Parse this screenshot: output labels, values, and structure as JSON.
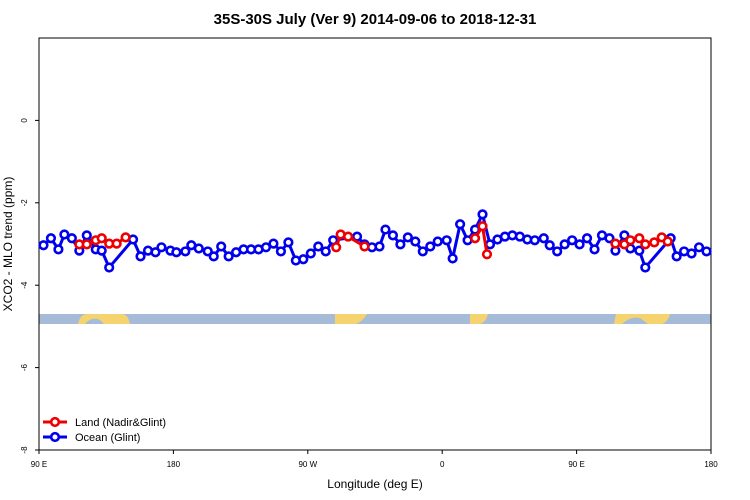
{
  "chart_data": {
    "type": "line",
    "title": "35S-30S July (Ver 9)   2014-09-06 to 2018-12-31",
    "x_label": "Longitude (deg E)",
    "y_label": "XCO2 - MLO trend (ppm)",
    "xlim": [
      90,
      540
    ],
    "xticks": [
      {
        "value": 90,
        "label": "90 E"
      },
      {
        "value": 180,
        "label": "180"
      },
      {
        "value": 270,
        "label": "90 W"
      },
      {
        "value": 360,
        "label": "0"
      },
      {
        "value": 450,
        "label": "90 E"
      },
      {
        "value": 540,
        "label": "180"
      }
    ],
    "ylim": [
      -8,
      2
    ],
    "yticks": [
      -8,
      -6,
      -4,
      -2,
      0
    ],
    "legend": "bottom left",
    "series": [
      {
        "name": "Ocean (Glint)",
        "color": "#0000ee",
        "x": [
          93,
          98,
          103,
          107,
          112,
          117,
          122,
          128,
          132,
          137,
          153,
          158,
          163,
          168,
          172,
          178,
          182,
          188,
          192,
          197,
          203,
          207,
          212,
          217,
          222,
          227,
          232,
          237,
          242,
          247,
          252,
          257,
          262,
          267,
          272,
          277,
          282,
          287,
          303,
          308,
          313,
          318,
          322,
          327,
          332,
          337,
          342,
          347,
          352,
          357,
          363,
          367,
          372,
          377,
          382,
          387,
          392,
          397,
          402,
          407,
          412,
          417,
          422,
          428,
          432,
          437,
          442,
          447,
          452,
          457,
          462,
          467,
          472,
          476,
          482,
          486,
          492,
          496,
          513,
          517,
          522,
          527,
          532,
          537
        ],
        "values": [
          -3.03,
          -2.86,
          -3.13,
          -2.77,
          -2.86,
          -3.16,
          -2.79,
          -3.13,
          -3.16,
          -3.57,
          -2.89,
          -3.3,
          -3.16,
          -3.2,
          -3.08,
          -3.16,
          -3.2,
          -3.18,
          -3.03,
          -3.11,
          -3.18,
          -3.3,
          -3.06,
          -3.3,
          -3.2,
          -3.13,
          -3.13,
          -3.13,
          -3.08,
          -2.99,
          -3.18,
          -2.96,
          -3.4,
          -3.37,
          -3.23,
          -3.06,
          -3.18,
          -2.91,
          -2.82,
          -3.01,
          -3.08,
          -3.06,
          -2.65,
          -2.79,
          -3.01,
          -2.84,
          -2.94,
          -3.18,
          -3.06,
          -2.94,
          -2.91,
          -3.35,
          -2.52,
          -2.91,
          -2.65,
          -2.28,
          -3.01,
          -2.89,
          -2.82,
          -2.79,
          -2.82,
          -2.89,
          -2.91,
          -2.86,
          -3.03,
          -3.18,
          -3.01,
          -2.91,
          -3.01,
          -2.86,
          -3.13,
          -2.79,
          -2.86,
          -3.16,
          -2.79,
          -3.11,
          -3.16,
          -3.57,
          -2.86,
          -3.3,
          -3.18,
          -3.23,
          -3.08,
          -3.18
        ]
      },
      {
        "name": "Land (Nadir&Glint)",
        "color": "#ee0000",
        "x": [
          117,
          122,
          128,
          132,
          137,
          142,
          148,
          null,
          289,
          292,
          297,
          308,
          null,
          382,
          387,
          390,
          null,
          476,
          482,
          486,
          492,
          496,
          502,
          507,
          511
        ],
        "values": [
          -3.01,
          -3.01,
          -2.91,
          -2.86,
          -2.99,
          -2.99,
          -2.84,
          null,
          -3.08,
          -2.77,
          -2.82,
          -3.06,
          null,
          -2.86,
          -2.57,
          -3.25,
          null,
          -2.99,
          -3.01,
          -2.91,
          -2.86,
          -3.01,
          -2.96,
          -2.84,
          -2.94
        ]
      }
    ]
  }
}
